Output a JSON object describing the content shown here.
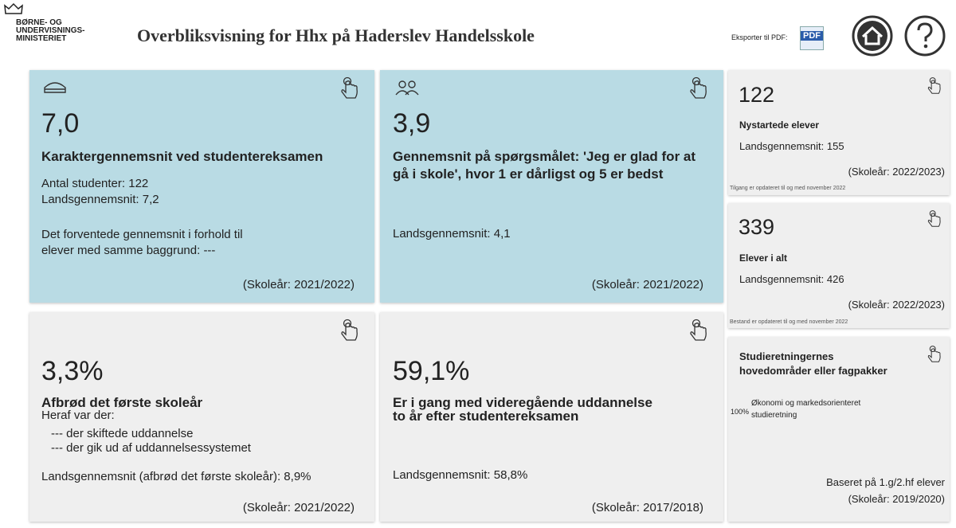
{
  "header": {
    "logo": [
      "BØRNE- OG",
      "UNDERVISNINGS-",
      "MINISTERIET"
    ],
    "title": "Overbliksvisning for Hhx på Haderslev Handelsskole",
    "export_label": "Eksporter til PDF:",
    "pdf_icon": "PDF"
  },
  "cards": [
    {
      "value": "7,0",
      "heading": [
        "Karaktergennemsnit ved studentereksamen"
      ],
      "lines": [
        "Antal studenter: 122",
        "Landsgennemsnit: 7,2",
        "Det forventede gennemsnit i forhold til",
        "elever med samme baggrund: ---"
      ],
      "footer": [
        "(Skoleår: 2021/2022)"
      ]
    },
    {
      "value": "3,9",
      "heading": [
        "Gennemsnit på spørgsmålet: 'Jeg er glad for at",
        "gå i skole', hvor 1 er dårligst og 5 er bedst"
      ],
      "lines": [
        "Landsgennemsnit: 4,1"
      ],
      "footer": [
        "(Skoleår: 2021/2022)"
      ]
    },
    {
      "value": "122",
      "heading": [
        "Nystartede elever"
      ],
      "lines": [
        "Landsgennemsnit: 155"
      ],
      "footer": [
        "(Skoleår: 2022/2023)"
      ],
      "note": "Tilgang er opdateret til og med november 2022"
    },
    {
      "value": "339",
      "heading": [
        "Elever i alt"
      ],
      "lines": [
        "Landsgennemsnit: 426"
      ],
      "footer": [
        "(Skoleår: 2022/2023)"
      ],
      "note": "Bestand er opdateret til og med november 2022"
    },
    {
      "heading": [
        "Studieretningernes",
        "hovedområder eller fagpakker"
      ],
      "share": "100%",
      "lines": [
        "Økonomi og markedsorienteret",
        "studieretning"
      ],
      "footer": [
        "Baseret på 1.g/2.hf elever",
        "(Skoleår: 2019/2020)"
      ]
    },
    {
      "value": "3,3%",
      "heading": [
        "Afbrød det første skoleår"
      ],
      "lines": [
        "Heraf var der:",
        "--- der skiftede uddannelse",
        "--- der gik ud af uddannelsessystemet",
        "Landsgennemsnit (afbrød det første skoleår): 8,9%"
      ],
      "footer": [
        "(Skoleår: 2021/2022)"
      ]
    },
    {
      "value": "59,1%",
      "heading": [
        "Er i gang med videregående uddannelse",
        "to år efter studentereksamen"
      ],
      "lines": [
        "Landsgennemsnit: 58,8%"
      ],
      "footer": [
        "(Skoleår: 2017/2018)"
      ]
    }
  ]
}
